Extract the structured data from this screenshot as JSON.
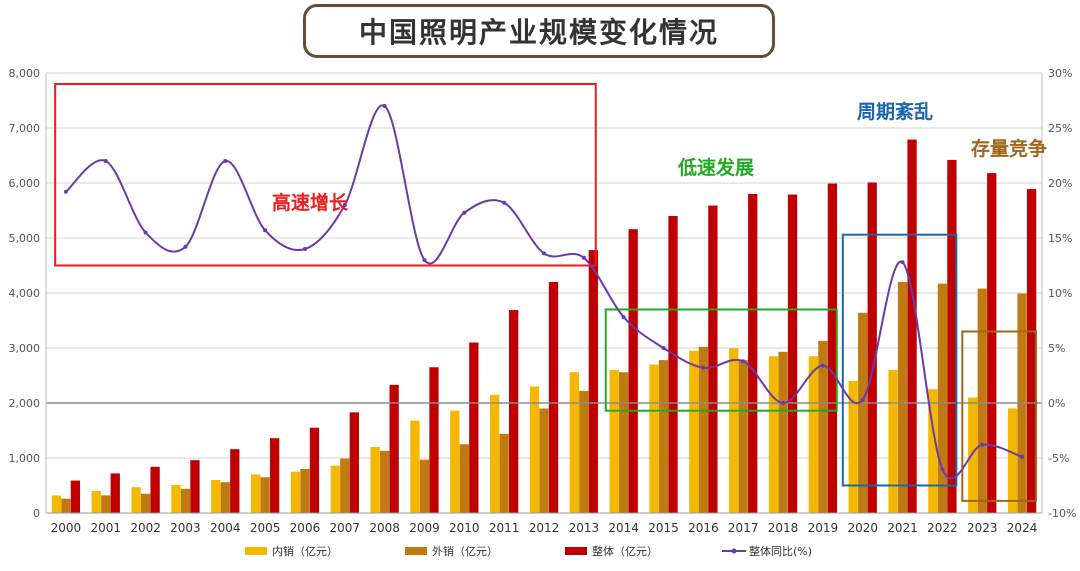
{
  "title": "中国照明产业规模变化情况",
  "chart_data": {
    "type": "bar",
    "title": "中国照明产业规模变化情况",
    "categories": [
      "2000",
      "2001",
      "2002",
      "2003",
      "2004",
      "2005",
      "2006",
      "2007",
      "2008",
      "2009",
      "2010",
      "2011",
      "2012",
      "2013",
      "2014",
      "2015",
      "2016",
      "2017",
      "2018",
      "2019",
      "2020",
      "2021",
      "2022",
      "2023",
      "2024"
    ],
    "y_left": {
      "ylim": [
        0,
        8000
      ],
      "ticks": [
        "0",
        "1,000",
        "2,000",
        "3,000",
        "4,000",
        "5,000",
        "6,000",
        "7,000",
        "8,000"
      ]
    },
    "y_right": {
      "ylim": [
        -10,
        30
      ],
      "ticks": [
        "-10%",
        "-5%",
        "0%",
        "5%",
        "10%",
        "15%",
        "20%",
        "25%",
        "30%"
      ]
    },
    "series": [
      {
        "name": "内销（亿元）",
        "type": "bar",
        "color": "#f5b800",
        "values": [
          320,
          400,
          470,
          510,
          600,
          700,
          750,
          860,
          1200,
          1680,
          1860,
          2150,
          2300,
          2560,
          2600,
          2700,
          2950,
          3000,
          2850,
          2850,
          2400,
          2600,
          2250,
          2100,
          1900
        ]
      },
      {
        "name": "外销（亿元）",
        "type": "bar",
        "color": "#c07a12",
        "values": [
          260,
          320,
          350,
          440,
          560,
          650,
          800,
          990,
          1130,
          970,
          1250,
          1440,
          1900,
          2220,
          2560,
          2780,
          3020,
          2780,
          2930,
          3130,
          3640,
          4200,
          4170,
          4080,
          3990
        ]
      },
      {
        "name": "整体（亿元）",
        "type": "bar",
        "color": "#c00000",
        "values": [
          590,
          720,
          840,
          960,
          1160,
          1360,
          1550,
          1830,
          2330,
          2650,
          3100,
          3690,
          4200,
          4780,
          5160,
          5400,
          5590,
          5800,
          5790,
          5990,
          6010,
          6790,
          6420,
          6180,
          5890
        ]
      },
      {
        "name": "整体同比(%)",
        "type": "line",
        "color": "#6a3ba8",
        "axis": "right",
        "values": [
          19.2,
          22,
          15.5,
          14.2,
          22.0,
          15.7,
          14.0,
          18.0,
          27,
          13.0,
          17.3,
          18.2,
          13.6,
          13.2,
          7.8,
          5.0,
          3.2,
          3.8,
          0.0,
          3.4,
          0.3,
          12.8,
          -6.0,
          -3.8,
          -4.9
        ]
      }
    ],
    "annotations": [
      {
        "text": "高速增长",
        "color": "#ee1c1c"
      },
      {
        "text": "低速发展",
        "color": "#22aa22"
      },
      {
        "text": "周期紊乱",
        "color": "#1a66b0"
      },
      {
        "text": "存量竞争",
        "color": "#a0661a"
      }
    ],
    "legend_position": "bottom"
  }
}
